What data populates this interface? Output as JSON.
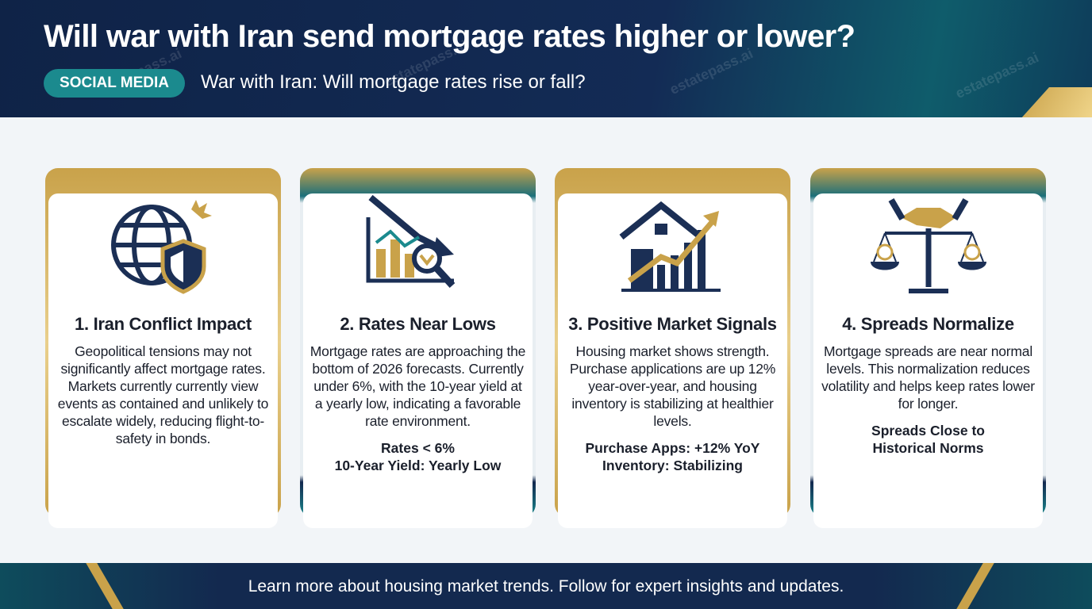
{
  "header": {
    "title": "Will war with Iran send mortgage rates higher or lower?",
    "tag": "SOCIAL MEDIA",
    "subtitle": "War with Iran: Will mortgage rates rise or fall?",
    "watermark": "estatepass.ai"
  },
  "cards": [
    {
      "title": "1. Iran Conflict Impact",
      "body": [
        "Geopolitical tensions may not significantly affect mortgage rates.",
        "Markets currently currently view events as contained and unlikely to escalate widely, reducing flight-to-safety in bonds."
      ],
      "highlights": []
    },
    {
      "title": "2. Rates Near Lows",
      "body": [
        "Mortgage rates are approaching the bottom of 2026 forecasts. Currently under 6%, with the 10-year yield at a yearly low, indicating a favorable rate environment."
      ],
      "highlights": [
        "Rates < 6%",
        "10-Year Yield: Yearly Low"
      ]
    },
    {
      "title": "3. Positive Market Signals",
      "body": [
        "Housing market shows strength. Purchase applications are up 12% year-over-year, and housing inventory is stabilizing at healthier levels."
      ],
      "highlights": [
        "Purchase Apps: +12% YoY",
        "Inventory: Stabilizing"
      ]
    },
    {
      "title": "4. Spreads Normalize",
      "body": [
        "Mortgage spreads are near normal levels. This normalization reduces volatility and helps keep rates lower for longer."
      ],
      "highlights": [
        "Spreads Close to Historical Norms"
      ]
    }
  ],
  "footer": {
    "text": "Learn more about housing market trends. Follow for expert insights and updates."
  }
}
